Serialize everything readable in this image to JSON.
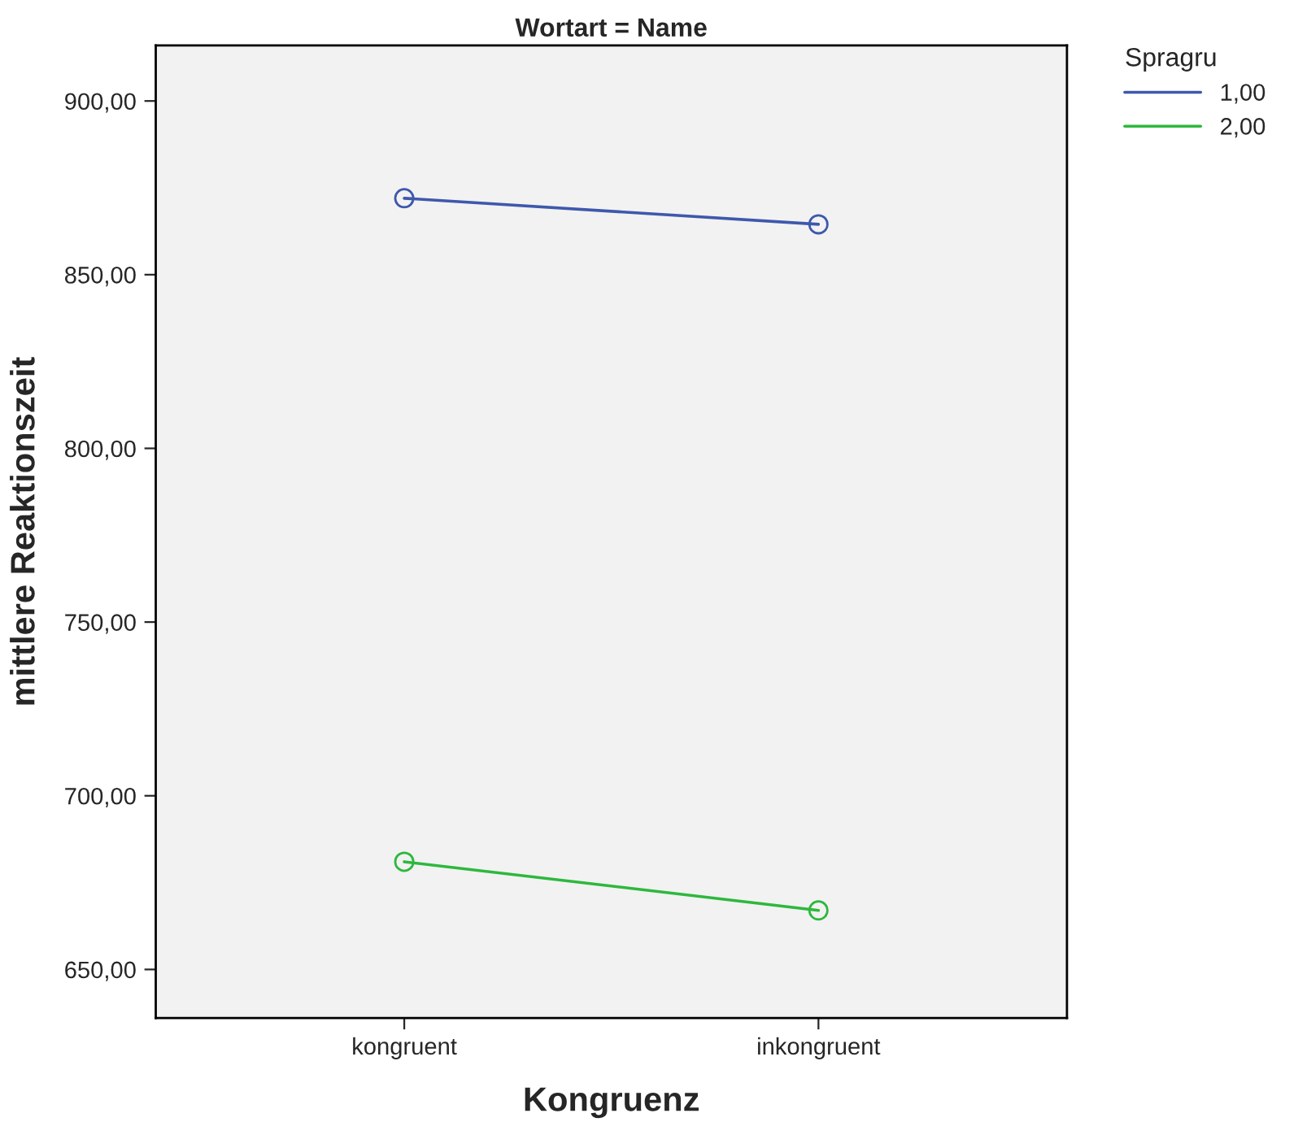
{
  "chart_data": {
    "type": "line",
    "title": "Wortart = Name",
    "xlabel": "Kongruenz",
    "ylabel": "mittlere Reaktionszeit",
    "legend_title": "Spragru",
    "categories": [
      "kongruent",
      "inkongruent"
    ],
    "series": [
      {
        "name": "1,00",
        "color": "#3e58ac",
        "values": [
          872,
          864.5
        ]
      },
      {
        "name": "2,00",
        "color": "#2db83d",
        "values": [
          681,
          667
        ]
      }
    ],
    "ylim": [
      636,
      916
    ],
    "yticks": [
      {
        "value": 650,
        "label": "650,00"
      },
      {
        "value": 700,
        "label": "700,00"
      },
      {
        "value": 750,
        "label": "750,00"
      },
      {
        "value": 800,
        "label": "800,00"
      },
      {
        "value": 850,
        "label": "850,00"
      },
      {
        "value": 900,
        "label": "900,00"
      }
    ],
    "marker": "circle",
    "line_style": "solid",
    "legend": "top right",
    "grid": false
  }
}
